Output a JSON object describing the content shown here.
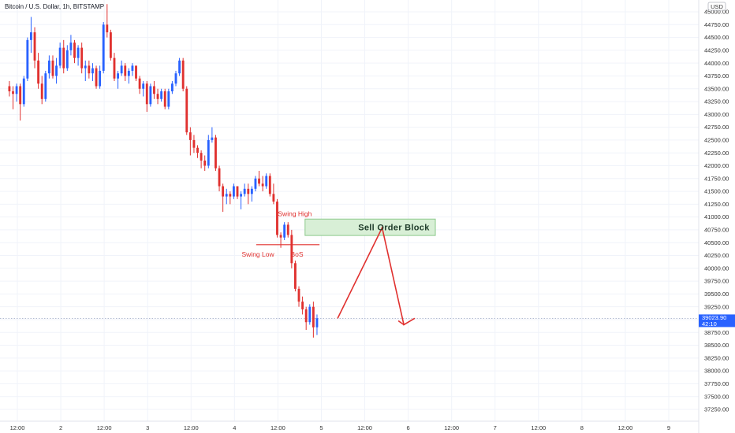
{
  "chart_data": {
    "type": "candlestick",
    "title": "Bitcoin / U.S. Dollar, 1h, BITSTAMP",
    "currency": "USD",
    "y_ticks": [
      45000,
      44750,
      44500,
      44250,
      44000,
      43750,
      43500,
      43250,
      43000,
      42750,
      42500,
      42250,
      42000,
      41750,
      41500,
      41250,
      41000,
      40750,
      40500,
      40250,
      40000,
      39750,
      39500,
      39250,
      39000,
      38750,
      38500,
      38250,
      38000,
      37750,
      37500,
      37250
    ],
    "y_tick_labels": [
      "45000.00",
      "44750.00",
      "44500.00",
      "44250.00",
      "44000.00",
      "43750.00",
      "43500.00",
      "43250.00",
      "43000.00",
      "42750.00",
      "42500.00",
      "42250.00",
      "42000.00",
      "41750.00",
      "41500.00",
      "41250.00",
      "41000.00",
      "40750.00",
      "40500.00",
      "40250.00",
      "40000.00",
      "39750.00",
      "39500.00",
      "39250.00",
      "39000.00",
      "38750.00",
      "38500.00",
      "38250.00",
      "38000.00",
      "37750.00",
      "37500.00",
      "37250.00"
    ],
    "ylim": [
      37050,
      45150
    ],
    "x_ticks": [
      {
        "label": "12:00",
        "t": 0
      },
      {
        "label": "2",
        "t": 12
      },
      {
        "label": "12:00",
        "t": 24
      },
      {
        "label": "3",
        "t": 36
      },
      {
        "label": "12:00",
        "t": 48
      },
      {
        "label": "4",
        "t": 60
      },
      {
        "label": "12:00",
        "t": 72
      },
      {
        "label": "5",
        "t": 84
      },
      {
        "label": "12:00",
        "t": 96
      },
      {
        "label": "6",
        "t": 108
      },
      {
        "label": "12:00",
        "t": 120
      },
      {
        "label": "7",
        "t": 132
      },
      {
        "label": "12:00",
        "t": 144
      },
      {
        "label": "8",
        "t": 156
      },
      {
        "label": "12:00",
        "t": 168
      },
      {
        "label": "9",
        "t": 180
      }
    ],
    "xlim": [
      -4.2,
      198
    ],
    "candles_ohlc": [
      [
        43550,
        43650,
        43350,
        43450
      ],
      [
        43450,
        43550,
        43100,
        43400
      ],
      [
        43400,
        43600,
        43250,
        43550
      ],
      [
        43550,
        43600,
        42880,
        43200
      ],
      [
        43200,
        43750,
        43150,
        43700
      ],
      [
        43700,
        44500,
        43650,
        44450
      ],
      [
        44450,
        44900,
        44200,
        44600
      ],
      [
        44600,
        44700,
        43900,
        44050
      ],
      [
        44050,
        44200,
        43500,
        43600
      ],
      [
        43600,
        43750,
        43200,
        43300
      ],
      [
        43300,
        43850,
        43250,
        43800
      ],
      [
        43800,
        44150,
        43700,
        44050
      ],
      [
        44050,
        44150,
        43700,
        43750
      ],
      [
        43750,
        44100,
        43600,
        43950
      ],
      [
        43950,
        44400,
        43900,
        44300
      ],
      [
        44300,
        44450,
        43800,
        43900
      ],
      [
        43900,
        44350,
        43850,
        44250
      ],
      [
        44250,
        44550,
        44150,
        44400
      ],
      [
        44400,
        44450,
        44000,
        44100
      ],
      [
        44100,
        44350,
        43950,
        44300
      ],
      [
        44300,
        44400,
        43800,
        43900
      ],
      [
        43900,
        44050,
        43650,
        43950
      ],
      [
        43950,
        44050,
        43700,
        43800
      ],
      [
        43800,
        44000,
        43650,
        43900
      ],
      [
        43900,
        43950,
        43500,
        43550
      ],
      [
        43550,
        43950,
        43500,
        43850
      ],
      [
        43850,
        44800,
        43800,
        44750
      ],
      [
        44750,
        45150,
        44500,
        44600
      ],
      [
        44600,
        44650,
        44050,
        44100
      ],
      [
        44100,
        44200,
        43650,
        43700
      ],
      [
        43700,
        43850,
        43500,
        43800
      ],
      [
        43800,
        44050,
        43750,
        43950
      ],
      [
        43950,
        44000,
        43650,
        43750
      ],
      [
        43750,
        43900,
        43600,
        43850
      ],
      [
        43850,
        44000,
        43750,
        43950
      ],
      [
        43950,
        43950,
        43650,
        43700
      ],
      [
        43700,
        43750,
        43400,
        43500
      ],
      [
        43500,
        43650,
        43350,
        43600
      ],
      [
        43600,
        43650,
        43050,
        43200
      ],
      [
        43200,
        43600,
        43150,
        43550
      ],
      [
        43550,
        43650,
        43300,
        43400
      ],
      [
        43400,
        43500,
        43200,
        43300
      ],
      [
        43300,
        43500,
        43250,
        43450
      ],
      [
        43450,
        43500,
        43100,
        43150
      ],
      [
        43150,
        43500,
        43100,
        43450
      ],
      [
        43450,
        43650,
        43400,
        43600
      ],
      [
        43600,
        43850,
        43550,
        43800
      ],
      [
        43800,
        44100,
        43750,
        44050
      ],
      [
        44050,
        44100,
        43450,
        43500
      ],
      [
        43500,
        43550,
        42600,
        42650
      ],
      [
        42650,
        42750,
        42200,
        42500
      ],
      [
        42500,
        42600,
        42250,
        42350
      ],
      [
        42350,
        42400,
        42150,
        42250
      ],
      [
        42250,
        42300,
        41950,
        42100
      ],
      [
        42100,
        42200,
        41900,
        42000
      ],
      [
        42000,
        42600,
        41950,
        42500
      ],
      [
        42500,
        42750,
        42450,
        42550
      ],
      [
        42550,
        42600,
        41900,
        41950
      ],
      [
        41950,
        42000,
        41500,
        41600
      ],
      [
        41600,
        41650,
        41100,
        41400
      ],
      [
        41400,
        41550,
        41250,
        41450
      ],
      [
        41450,
        41500,
        41250,
        41400
      ],
      [
        41400,
        41650,
        41350,
        41600
      ],
      [
        41600,
        41600,
        41350,
        41400
      ],
      [
        41400,
        41500,
        41150,
        41450
      ],
      [
        41450,
        41650,
        41400,
        41550
      ],
      [
        41550,
        41650,
        41250,
        41450
      ],
      [
        41450,
        41600,
        41300,
        41550
      ],
      [
        41550,
        41800,
        41500,
        41750
      ],
      [
        41750,
        41900,
        41600,
        41650
      ],
      [
        41650,
        41800,
        41500,
        41600
      ],
      [
        41600,
        41850,
        41550,
        41800
      ],
      [
        41800,
        41850,
        41400,
        41450
      ],
      [
        41450,
        41650,
        41250,
        41300
      ],
      [
        41300,
        41350,
        40600,
        40650
      ],
      [
        40650,
        40700,
        40400,
        40600
      ],
      [
        40600,
        40900,
        40550,
        40850
      ],
      [
        40850,
        40900,
        40600,
        40650
      ],
      [
        40650,
        40750,
        40000,
        40100
      ],
      [
        40100,
        40150,
        39550,
        39600
      ],
      [
        39600,
        39650,
        39250,
        39350
      ],
      [
        39350,
        39450,
        39100,
        39200
      ],
      [
        39200,
        39250,
        38800,
        38950
      ],
      [
        38950,
        39300,
        38900,
        39250
      ],
      [
        39250,
        39350,
        38650,
        38850
      ],
      [
        38850,
        39100,
        38700,
        39025
      ]
    ],
    "projection_path": [
      {
        "t": 88.5,
        "price": 39025
      },
      {
        "t": 100.8,
        "price": 40790
      },
      {
        "t": 106.8,
        "price": 38900
      },
      {
        "t": 109.8,
        "price": 39025
      }
    ],
    "current_price": {
      "price": 39023.9,
      "value_label": "39023.90",
      "time_label": "42:10"
    },
    "annotations": {
      "swing_high": "Swing High",
      "swing_low": "Swing Low",
      "bos": "BoS",
      "sell_order_block": "Sell Order Block"
    },
    "sell_order_block_range": {
      "t_start": 79.5,
      "t_end": 115.5,
      "low": 40640,
      "high": 40960
    },
    "swing_low_level": {
      "price": 40460,
      "t_start": 66,
      "t_end": 83.5
    },
    "colors": {
      "up": "#2962ff",
      "down": "#e0312f",
      "annot_red": "#e0312f",
      "ob_fill": "#d8efd6",
      "ob_stroke": "#8bc98a",
      "grid": "#f0f3fa",
      "badge": "#2962ff",
      "axis_text": "#333333"
    }
  }
}
